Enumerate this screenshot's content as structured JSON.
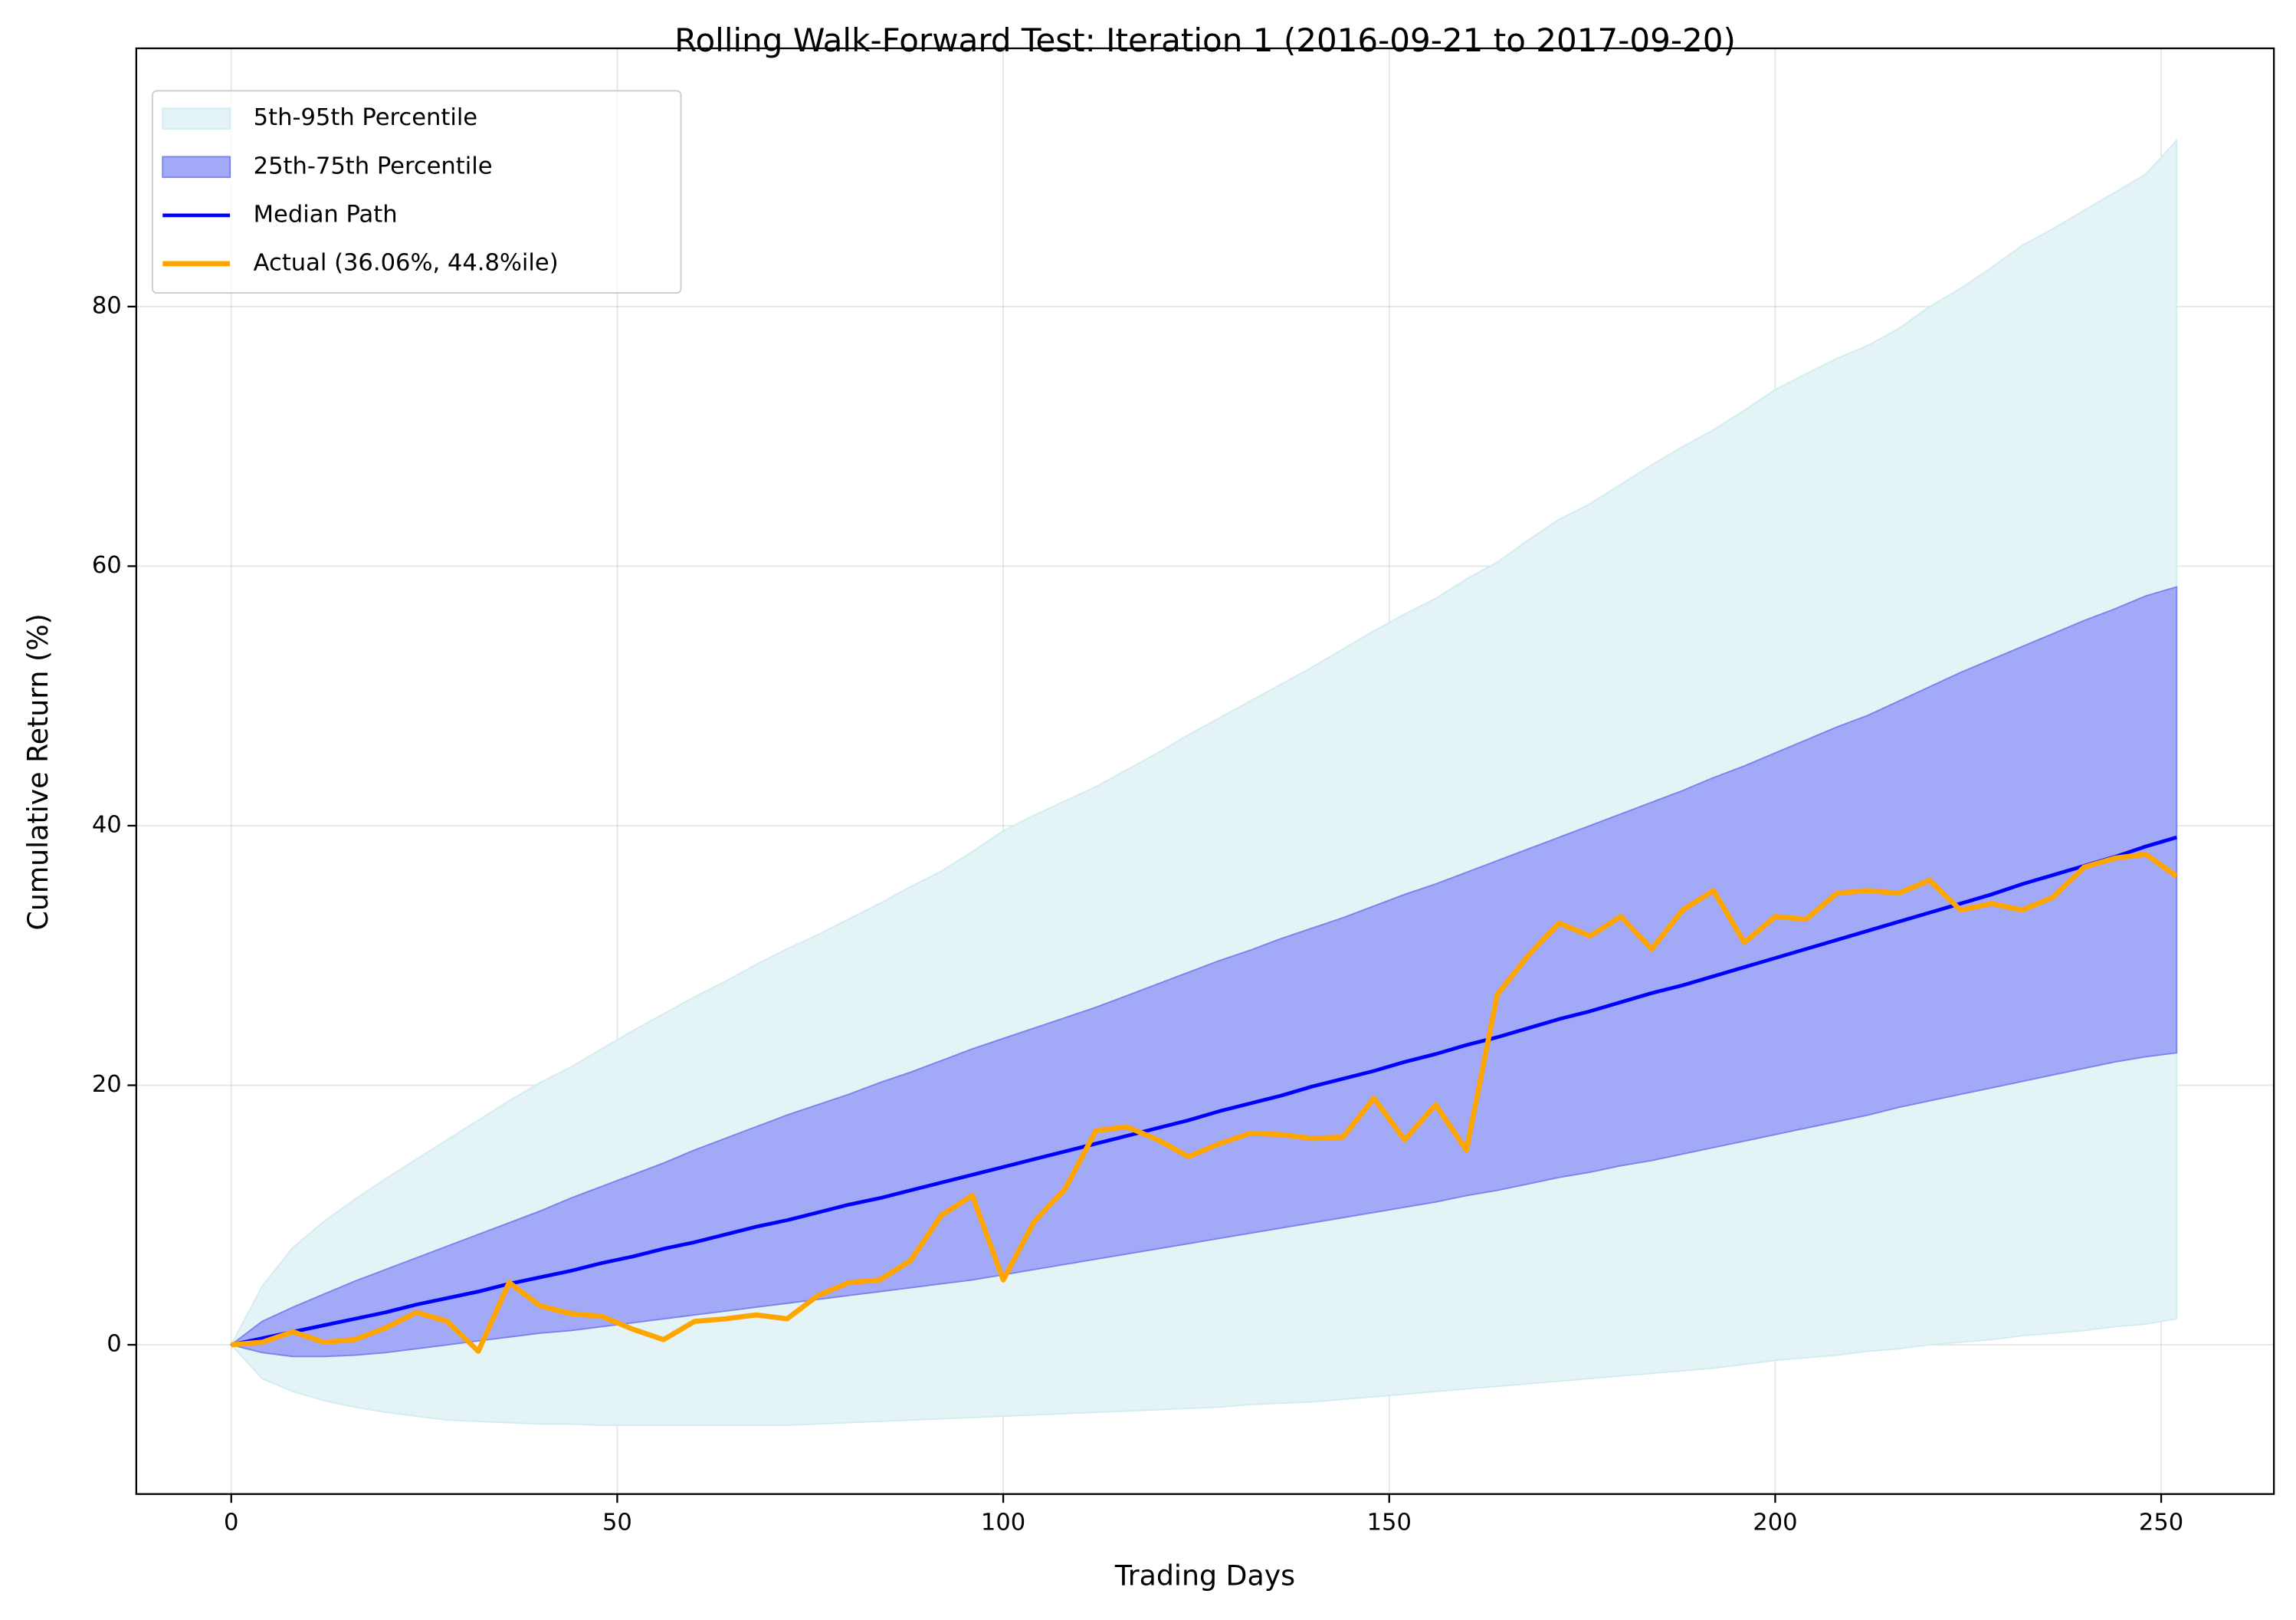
{
  "chart_data": {
    "type": "line",
    "title": "Rolling Walk-Forward Test: Iteration 1 (2016-09-21 to 2017-09-20)",
    "xlabel": "Trading Days",
    "ylabel": "Cumulative Return (%)",
    "xlim": [
      -12.3,
      264.6
    ],
    "ylim": [
      -11.5,
      99.9
    ],
    "xticks": [
      0,
      50,
      100,
      150,
      200,
      250
    ],
    "yticks": [
      0,
      20,
      40,
      60,
      80
    ],
    "grid": true,
    "legend": "upper left",
    "x": [
      0,
      4,
      8,
      12,
      16,
      20,
      24,
      28,
      32,
      36,
      40,
      44,
      48,
      52,
      56,
      60,
      64,
      68,
      72,
      76,
      80,
      84,
      88,
      92,
      96,
      100,
      104,
      108,
      112,
      116,
      120,
      124,
      128,
      132,
      136,
      140,
      144,
      148,
      152,
      156,
      160,
      164,
      168,
      172,
      176,
      180,
      184,
      188,
      192,
      196,
      200,
      204,
      208,
      212,
      216,
      220,
      224,
      228,
      232,
      236,
      240,
      244,
      248,
      252
    ],
    "series": [
      {
        "name": "5th-95th Percentile",
        "kind": "band",
        "color": "#e3f3f6",
        "edge": "#d2ecf1",
        "lower": [
          0,
          -2.6,
          -3.6,
          -4.3,
          -4.8,
          -5.2,
          -5.5,
          -5.8,
          -5.9,
          -6.0,
          -6.1,
          -6.1,
          -6.2,
          -6.2,
          -6.2,
          -6.2,
          -6.2,
          -6.2,
          -6.2,
          -6.1,
          -6.0,
          -5.9,
          -5.8,
          -5.7,
          -5.6,
          -5.5,
          -5.4,
          -5.3,
          -5.2,
          -5.1,
          -5.0,
          -4.9,
          -4.8,
          -4.6,
          -4.5,
          -4.4,
          -4.2,
          -4.0,
          -3.8,
          -3.6,
          -3.4,
          -3.2,
          -3.0,
          -2.8,
          -2.6,
          -2.4,
          -2.2,
          -2.0,
          -1.8,
          -1.5,
          -1.2,
          -1.0,
          -0.8,
          -0.5,
          -0.3,
          0,
          0.2,
          0.4,
          0.7,
          0.9,
          1.1,
          1.4,
          1.6,
          2.0
        ],
        "upper": [
          0,
          4.5,
          7.5,
          9.5,
          11.2,
          12.8,
          14.3,
          15.8,
          17.3,
          18.8,
          20.2,
          21.4,
          22.8,
          24.2,
          25.5,
          26.8,
          28.0,
          29.3,
          30.5,
          31.6,
          32.8,
          34.0,
          35.3,
          36.5,
          38.0,
          39.6,
          40.8,
          41.9,
          43.0,
          44.3,
          45.6,
          47.0,
          48.3,
          49.6,
          50.9,
          52.2,
          53.6,
          55.0,
          56.3,
          57.5,
          59.0,
          60.3,
          62.0,
          63.6,
          64.8,
          66.3,
          67.8,
          69.2,
          70.5,
          72.0,
          73.6,
          74.8,
          76.0,
          77.0,
          78.3,
          80.0,
          81.4,
          83.0,
          84.7,
          86.0,
          87.4,
          88.8,
          90.2,
          92.8
        ]
      },
      {
        "name": "25th-75th Percentile",
        "kind": "band",
        "color": "#a2a9f6",
        "edge": "#7b83ee",
        "lower": [
          0,
          -0.6,
          -0.9,
          -0.9,
          -0.8,
          -0.6,
          -0.3,
          0,
          0.3,
          0.6,
          0.9,
          1.1,
          1.4,
          1.7,
          2.0,
          2.3,
          2.6,
          2.9,
          3.2,
          3.5,
          3.8,
          4.1,
          4.4,
          4.7,
          5.0,
          5.4,
          5.8,
          6.2,
          6.6,
          7.0,
          7.4,
          7.8,
          8.2,
          8.6,
          9.0,
          9.4,
          9.8,
          10.2,
          10.6,
          11.0,
          11.5,
          11.9,
          12.4,
          12.9,
          13.3,
          13.8,
          14.2,
          14.7,
          15.2,
          15.7,
          16.2,
          16.7,
          17.2,
          17.7,
          18.3,
          18.8,
          19.3,
          19.8,
          20.3,
          20.8,
          21.3,
          21.8,
          22.2,
          22.5
        ],
        "upper": [
          0,
          1.8,
          2.9,
          3.9,
          4.9,
          5.8,
          6.7,
          7.6,
          8.5,
          9.4,
          10.3,
          11.3,
          12.2,
          13.1,
          14.0,
          15.0,
          15.9,
          16.8,
          17.7,
          18.5,
          19.3,
          20.2,
          21.0,
          21.9,
          22.8,
          23.6,
          24.4,
          25.2,
          26.0,
          26.9,
          27.8,
          28.7,
          29.6,
          30.4,
          31.3,
          32.1,
          32.9,
          33.8,
          34.7,
          35.5,
          36.4,
          37.3,
          38.2,
          39.1,
          40.0,
          40.9,
          41.8,
          42.7,
          43.7,
          44.6,
          45.6,
          46.6,
          47.6,
          48.5,
          49.6,
          50.7,
          51.8,
          52.8,
          53.8,
          54.8,
          55.8,
          56.7,
          57.7,
          58.4
        ]
      },
      {
        "name": "Median Path",
        "kind": "line",
        "color": "#0000ff",
        "width": 2.5,
        "values": [
          0,
          0.5,
          1.0,
          1.5,
          2.0,
          2.5,
          3.1,
          3.6,
          4.1,
          4.7,
          5.2,
          5.7,
          6.3,
          6.8,
          7.4,
          7.9,
          8.5,
          9.1,
          9.6,
          10.2,
          10.8,
          11.3,
          11.9,
          12.5,
          13.1,
          13.7,
          14.3,
          14.9,
          15.5,
          16.1,
          16.7,
          17.3,
          18.0,
          18.6,
          19.2,
          19.9,
          20.5,
          21.1,
          21.8,
          22.4,
          23.1,
          23.7,
          24.4,
          25.1,
          25.7,
          26.4,
          27.1,
          27.7,
          28.4,
          29.1,
          29.8,
          30.5,
          31.2,
          31.9,
          32.6,
          33.3,
          34.0,
          34.7,
          35.5,
          36.2,
          36.9,
          37.6,
          38.4,
          39.1
        ]
      },
      {
        "name": "Actual (36.06%, 44.8%ile)",
        "kind": "line",
        "color": "#ffa500",
        "width": 3.5,
        "values": [
          0,
          0.2,
          1.0,
          0.2,
          0.4,
          1.3,
          2.5,
          1.8,
          -0.5,
          4.8,
          3.0,
          2.4,
          2.2,
          1.2,
          0.4,
          1.8,
          2.0,
          2.3,
          2.0,
          3.8,
          4.8,
          5.0,
          6.5,
          10.0,
          11.5,
          5.0,
          9.5,
          12.0,
          16.5,
          16.8,
          15.8,
          14.5,
          15.5,
          16.3,
          16.2,
          15.9,
          16.0,
          19.0,
          15.8,
          18.5,
          15.0,
          27.0,
          30.0,
          32.5,
          31.5,
          33.0,
          30.5,
          33.5,
          35.0,
          31.0,
          33.0,
          32.8,
          34.8,
          35.0,
          34.8,
          35.8,
          33.5,
          34.0,
          33.5,
          34.5,
          36.8,
          37.5,
          37.8,
          36.1
        ]
      }
    ]
  }
}
